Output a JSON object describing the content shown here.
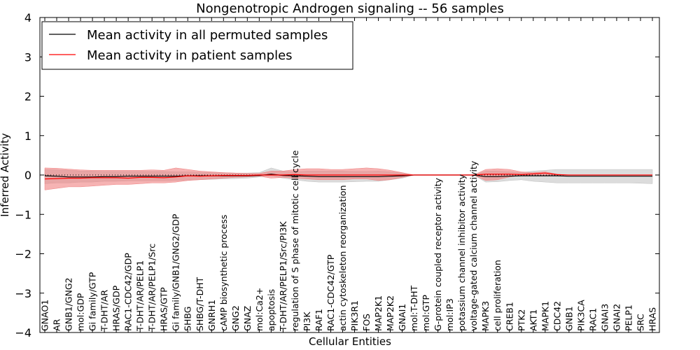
{
  "chart_data": {
    "type": "line",
    "title": "Nongenotropic Androgen signaling -- 56 samples",
    "xlabel": "Cellular Entities",
    "ylabel": "Inferred Activity",
    "ylim": [
      -4,
      4
    ],
    "yticks": [
      4,
      3,
      2,
      1,
      0,
      -1,
      -2,
      -3,
      -4
    ],
    "ytick_labels": [
      "4",
      "3",
      "2",
      "1",
      "0",
      "−1",
      "−2",
      "−3",
      "−4"
    ],
    "legend_position": "top-left",
    "categories": [
      "GNAO1",
      "AR",
      "GNB1/GNG2",
      "mol:GDP",
      "Gi family/GTP",
      "T-DHT/AR",
      "HRAS/GDP",
      "RAC1-CDC42/GDP",
      "T-DHT/AR/PELP1",
      "T-DHT/AR/PELP1/Src",
      "HRAS/GTP",
      "Gi family/GNB1/GNG2/GDP",
      "SHBG",
      "SHBG/T-DHT",
      "GNRH1",
      "cAMP biosynthetic process",
      "GNG2",
      "GNAZ",
      "mol:Ca2+",
      "apoptosis",
      "T-DHT/AR/PELP1/Src/PI3K",
      "regulation of S phase of mitotic cell cycle",
      "PI3K",
      "RAF1",
      "RAC1-CDC42/GTP",
      "actin cytoskeleton reorganization",
      "PIK3R1",
      "FOS",
      "MAP2K1",
      "MAP2K2",
      "GNAI1",
      "mol:T-DHT",
      "mol:GTP",
      "G-protein coupled receptor activity",
      "mol:IP3",
      "potassium channel inhibitor activity",
      "voltage-gated calcium channel activity",
      "MAPK3",
      "cell proliferation",
      "CREB1",
      "PTK2",
      "AKT1",
      "MAPK1",
      "CDC42",
      "GNB1",
      "PIK3CA",
      "RAC1",
      "GNAI3",
      "GNAI2",
      "PELP1",
      "SRC",
      "HRAS"
    ],
    "series": [
      {
        "name": "Mean activity in all permuted samples",
        "color": "#000000",
        "band_color": "#c0c0c0",
        "values": [
          -0.02,
          -0.03,
          -0.05,
          -0.05,
          -0.05,
          -0.04,
          -0.04,
          -0.03,
          -0.03,
          -0.03,
          -0.03,
          -0.03,
          -0.02,
          -0.02,
          -0.02,
          -0.02,
          -0.02,
          -0.02,
          -0.01,
          0.02,
          -0.01,
          -0.02,
          -0.03,
          -0.04,
          -0.04,
          -0.04,
          -0.04,
          -0.04,
          -0.04,
          -0.03,
          -0.02,
          0.0,
          0.0,
          0.0,
          0.0,
          0.0,
          0.0,
          -0.04,
          -0.04,
          -0.03,
          -0.02,
          -0.02,
          -0.02,
          -0.02,
          -0.03,
          -0.03,
          -0.03,
          -0.03,
          -0.03,
          -0.03,
          -0.03,
          -0.03
        ],
        "lower": [
          -0.22,
          -0.2,
          -0.2,
          -0.18,
          -0.18,
          -0.16,
          -0.16,
          -0.15,
          -0.15,
          -0.15,
          -0.15,
          -0.14,
          -0.13,
          -0.12,
          -0.11,
          -0.1,
          -0.09,
          -0.08,
          -0.05,
          -0.02,
          -0.08,
          -0.12,
          -0.16,
          -0.18,
          -0.18,
          -0.18,
          -0.17,
          -0.16,
          -0.16,
          -0.12,
          -0.08,
          0.0,
          0.0,
          0.0,
          0.0,
          0.0,
          0.0,
          -0.18,
          -0.17,
          -0.14,
          -0.12,
          -0.16,
          -0.18,
          -0.2,
          -0.2,
          -0.2,
          -0.2,
          -0.2,
          -0.2,
          -0.2,
          -0.21,
          -0.22
        ],
        "upper": [
          0.14,
          0.13,
          0.12,
          0.1,
          0.1,
          0.09,
          0.09,
          0.09,
          0.09,
          0.09,
          0.09,
          0.08,
          0.08,
          0.07,
          0.06,
          0.06,
          0.05,
          0.05,
          0.06,
          0.18,
          0.1,
          0.08,
          0.1,
          0.1,
          0.1,
          0.1,
          0.09,
          0.09,
          0.1,
          0.08,
          0.05,
          0.0,
          0.0,
          0.0,
          0.0,
          0.0,
          0.0,
          0.1,
          0.1,
          0.08,
          0.06,
          0.1,
          0.12,
          0.14,
          0.14,
          0.14,
          0.14,
          0.14,
          0.14,
          0.14,
          0.14,
          0.14
        ]
      },
      {
        "name": "Mean activity in patient samples",
        "color": "#ff0000",
        "band_color": "#f08080",
        "values": [
          -0.1,
          -0.09,
          -0.08,
          -0.08,
          -0.07,
          -0.07,
          -0.07,
          -0.08,
          -0.06,
          -0.06,
          -0.07,
          -0.05,
          -0.02,
          -0.03,
          -0.02,
          -0.01,
          -0.01,
          -0.01,
          0.0,
          0.0,
          0.0,
          0.01,
          0.0,
          0.0,
          0.0,
          0.0,
          0.0,
          0.0,
          0.0,
          0.0,
          0.0,
          0.0,
          0.0,
          0.0,
          0.0,
          0.0,
          0.0,
          0.02,
          0.02,
          0.02,
          0.01,
          0.03,
          0.05,
          0.01,
          0.0,
          0.0,
          0.0,
          0.0,
          0.0,
          0.0,
          0.0,
          0.0
        ],
        "lower": [
          -0.38,
          -0.34,
          -0.3,
          -0.3,
          -0.28,
          -0.26,
          -0.24,
          -0.24,
          -0.22,
          -0.2,
          -0.2,
          -0.18,
          -0.14,
          -0.12,
          -0.1,
          -0.08,
          -0.06,
          -0.05,
          -0.03,
          -0.08,
          -0.06,
          -0.08,
          -0.1,
          -0.12,
          -0.12,
          -0.12,
          -0.1,
          -0.1,
          -0.14,
          -0.12,
          -0.06,
          0.0,
          0.0,
          0.0,
          0.0,
          0.0,
          0.0,
          -0.14,
          -0.12,
          -0.05,
          -0.01,
          0.0,
          0.0,
          0.0,
          0.0,
          0.0,
          0.0,
          0.0,
          0.0,
          0.0,
          0.0,
          0.0
        ],
        "upper": [
          0.18,
          0.17,
          0.15,
          0.13,
          0.12,
          0.12,
          0.12,
          0.12,
          0.12,
          0.13,
          0.12,
          0.18,
          0.14,
          0.1,
          0.08,
          0.06,
          0.05,
          0.04,
          0.04,
          0.1,
          0.1,
          0.14,
          0.16,
          0.16,
          0.14,
          0.14,
          0.16,
          0.18,
          0.16,
          0.12,
          0.06,
          0.0,
          0.0,
          0.0,
          0.0,
          0.0,
          0.0,
          0.14,
          0.16,
          0.14,
          0.08,
          0.06,
          0.08,
          0.02,
          0.0,
          0.0,
          0.0,
          0.0,
          0.0,
          0.0,
          0.0,
          0.0
        ]
      }
    ],
    "baseline": {
      "style": "dotted",
      "value": 0
    }
  }
}
